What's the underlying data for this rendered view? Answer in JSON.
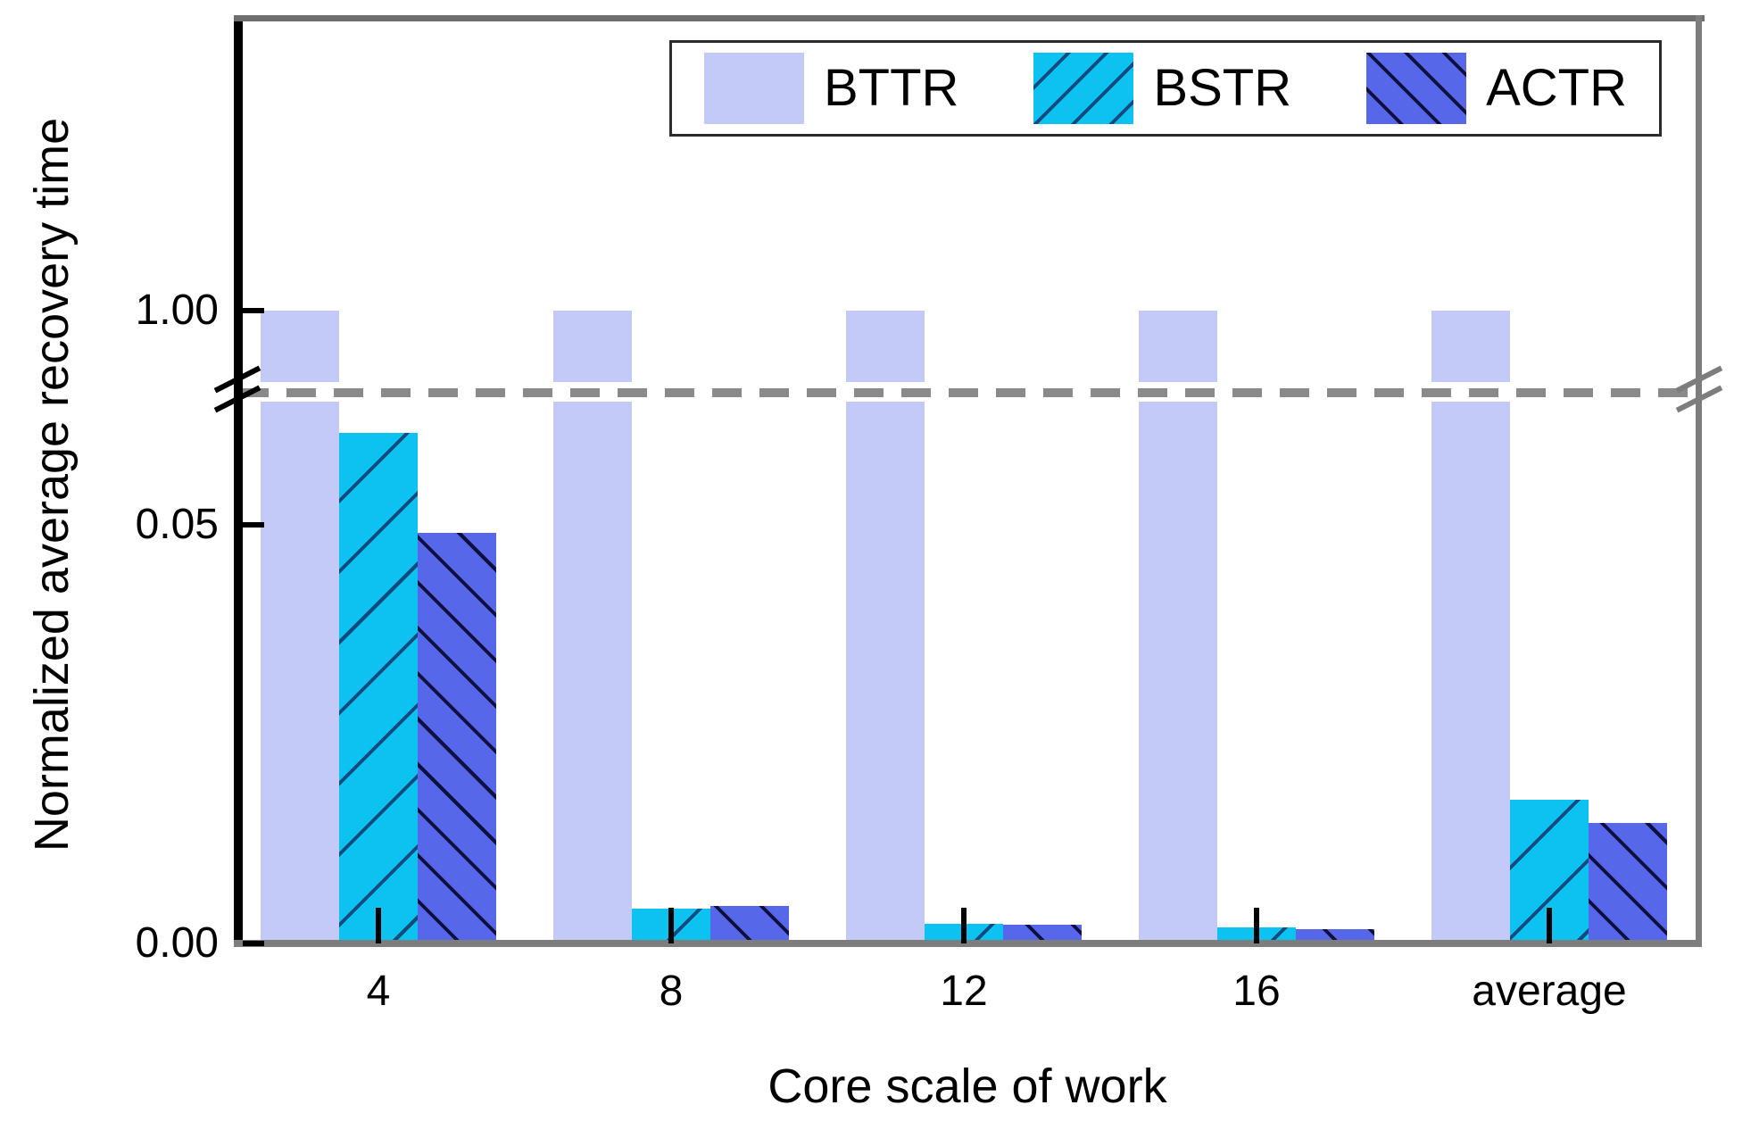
{
  "chart_data": {
    "type": "bar",
    "title": "",
    "xlabel": "Core scale of work",
    "ylabel": "Normalized average recovery time",
    "categories": [
      "4",
      "8",
      "12",
      "16",
      "average"
    ],
    "series": [
      {
        "name": "BTTR",
        "color": "#c4caf8",
        "hatch": "none",
        "hatch_color": null,
        "values": [
          1.0,
          1.0,
          1.0,
          1.0,
          1.0
        ]
      },
      {
        "name": "BSTR",
        "color": "#0bc2f1",
        "hatch": "/",
        "hatch_color": "#114a7e",
        "values": [
          0.061,
          0.0042,
          0.0023,
          0.0019,
          0.0172
        ]
      },
      {
        "name": "ACTR",
        "color": "#5667ea",
        "hatch": "\\",
        "hatch_color": "#101040",
        "values": [
          0.049,
          0.0045,
          0.0022,
          0.0017,
          0.0144
        ]
      }
    ],
    "y_axis": {
      "broken": true,
      "break_between": [
        0.065,
        0.95
      ],
      "break_marker_style": "double-slash",
      "break_guide_line": "gray dashed horizontal",
      "ticks": [
        {
          "label": "1.00",
          "value": 1.0
        },
        {
          "label": "0.05",
          "value": 0.05
        },
        {
          "label": "0.00",
          "value": 0.0
        }
      ],
      "lower_segment_range": [
        0.0,
        0.065
      ]
    },
    "legend": {
      "position": "top-right-inside",
      "entries": [
        "BTTR",
        "BSTR",
        "ACTR"
      ]
    },
    "grid": false,
    "colors": {
      "axis_left": "#000000",
      "axis_other_spines": "#7d7d7d",
      "break_dash_line": "#8a8a8a",
      "text": "#000000",
      "background": "#ffffff"
    }
  }
}
